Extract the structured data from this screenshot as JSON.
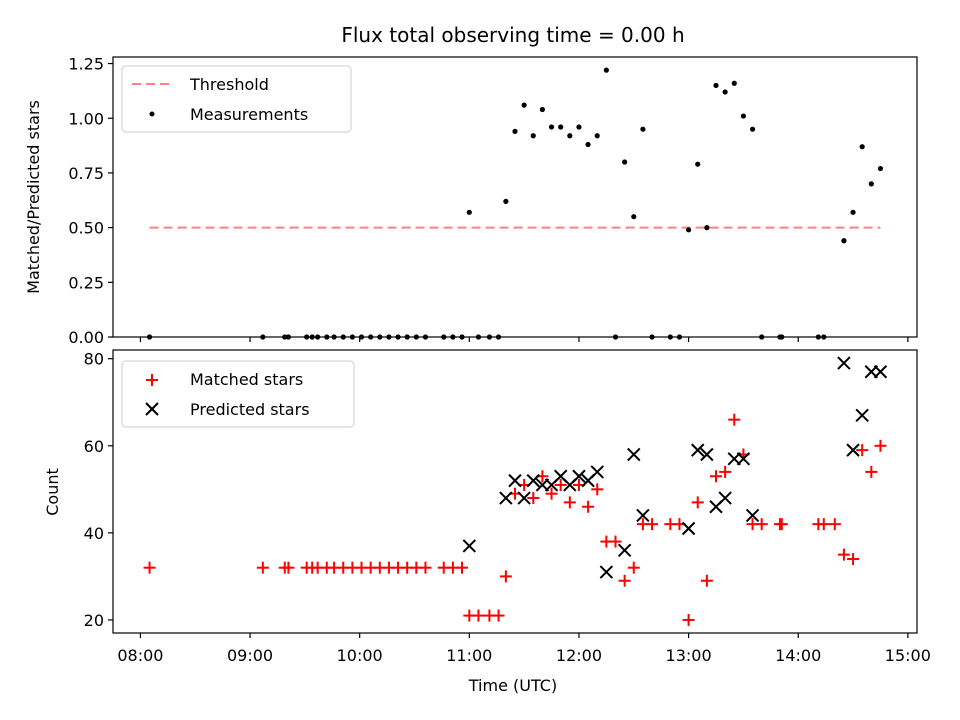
{
  "title": "Flux total observing time = 0.00 h",
  "chart_data": [
    {
      "type": "scatter",
      "ylabel": "Matched/Predicted stars",
      "xlabel": "",
      "xlim": [
        "07:45",
        "15:05"
      ],
      "ylim": [
        0,
        1.28
      ],
      "yticks": [
        0,
        0.25,
        0.5,
        0.75,
        1.0,
        1.25
      ],
      "ytick_labels": [
        "0.00",
        "0.25",
        "0.50",
        "0.75",
        "1.00",
        "1.25"
      ],
      "legend_position": "top-left",
      "threshold": {
        "name": "Threshold",
        "value": 0.5,
        "x_start": "08:05",
        "x_end": "14:45",
        "color": "#ff8080"
      },
      "series": [
        {
          "name": "Measurements",
          "marker": "dot",
          "color": "#000000",
          "points": [
            [
              "08:05",
              0
            ],
            [
              "09:07",
              0
            ],
            [
              "09:19",
              0
            ],
            [
              "09:21",
              0
            ],
            [
              "09:31",
              0
            ],
            [
              "09:34",
              0
            ],
            [
              "09:37",
              0
            ],
            [
              "09:42",
              0
            ],
            [
              "09:46",
              0
            ],
            [
              "09:51",
              0
            ],
            [
              "09:56",
              0
            ],
            [
              "10:01",
              0
            ],
            [
              "10:06",
              0
            ],
            [
              "10:11",
              0
            ],
            [
              "10:16",
              0
            ],
            [
              "10:21",
              0
            ],
            [
              "10:26",
              0
            ],
            [
              "10:31",
              0
            ],
            [
              "10:36",
              0
            ],
            [
              "10:46",
              0
            ],
            [
              "10:51",
              0
            ],
            [
              "10:56",
              0
            ],
            [
              "11:00",
              0.57
            ],
            [
              "11:05",
              0
            ],
            [
              "11:11",
              0
            ],
            [
              "11:16",
              0
            ],
            [
              "11:20",
              0.62
            ],
            [
              "11:25",
              0.94
            ],
            [
              "11:30",
              1.06
            ],
            [
              "11:35",
              0.92
            ],
            [
              "11:40",
              1.04
            ],
            [
              "11:45",
              0.96
            ],
            [
              "11:50",
              0.96
            ],
            [
              "11:55",
              0.92
            ],
            [
              "12:00",
              0.96
            ],
            [
              "12:05",
              0.88
            ],
            [
              "12:10",
              0.92
            ],
            [
              "12:15",
              1.22
            ],
            [
              "12:20",
              0
            ],
            [
              "12:25",
              0.8
            ],
            [
              "12:30",
              0.55
            ],
            [
              "12:35",
              0.95
            ],
            [
              "12:40",
              0
            ],
            [
              "12:50",
              0
            ],
            [
              "12:55",
              0
            ],
            [
              "13:00",
              0.49
            ],
            [
              "13:05",
              0.79
            ],
            [
              "13:10",
              0.5
            ],
            [
              "13:15",
              1.15
            ],
            [
              "13:20",
              1.12
            ],
            [
              "13:25",
              1.16
            ],
            [
              "13:30",
              1.01
            ],
            [
              "13:35",
              0.95
            ],
            [
              "13:40",
              0
            ],
            [
              "13:50",
              0
            ],
            [
              "13:51",
              0
            ],
            [
              "14:11",
              0
            ],
            [
              "14:14",
              0
            ],
            [
              "14:25",
              0.44
            ],
            [
              "14:30",
              0.57
            ],
            [
              "14:35",
              0.87
            ],
            [
              "14:40",
              0.7
            ],
            [
              "14:45",
              0.77
            ]
          ]
        }
      ]
    },
    {
      "type": "scatter",
      "xlabel": "Time (UTC)",
      "ylabel": "Count",
      "xlim": [
        "07:45",
        "15:05"
      ],
      "ylim": [
        17,
        82
      ],
      "xticks": [
        "08:00",
        "09:00",
        "10:00",
        "11:00",
        "12:00",
        "13:00",
        "14:00",
        "15:00"
      ],
      "yticks": [
        20,
        40,
        60,
        80
      ],
      "ytick_labels": [
        "20",
        "40",
        "60",
        "80"
      ],
      "legend_position": "top-left",
      "series": [
        {
          "name": "Matched stars",
          "marker": "plus",
          "color": "#ff0000",
          "points": [
            [
              "08:05",
              32
            ],
            [
              "09:07",
              32
            ],
            [
              "09:19",
              32
            ],
            [
              "09:21",
              32
            ],
            [
              "09:31",
              32
            ],
            [
              "09:34",
              32
            ],
            [
              "09:37",
              32
            ],
            [
              "09:42",
              32
            ],
            [
              "09:46",
              32
            ],
            [
              "09:51",
              32
            ],
            [
              "09:56",
              32
            ],
            [
              "10:01",
              32
            ],
            [
              "10:06",
              32
            ],
            [
              "10:11",
              32
            ],
            [
              "10:16",
              32
            ],
            [
              "10:21",
              32
            ],
            [
              "10:26",
              32
            ],
            [
              "10:31",
              32
            ],
            [
              "10:36",
              32
            ],
            [
              "10:46",
              32
            ],
            [
              "10:51",
              32
            ],
            [
              "10:56",
              32
            ],
            [
              "11:00",
              21
            ],
            [
              "11:05",
              21
            ],
            [
              "11:11",
              21
            ],
            [
              "11:16",
              21
            ],
            [
              "11:20",
              30
            ],
            [
              "11:25",
              49
            ],
            [
              "11:30",
              51
            ],
            [
              "11:35",
              48
            ],
            [
              "11:40",
              53
            ],
            [
              "11:45",
              49
            ],
            [
              "11:50",
              51
            ],
            [
              "11:55",
              47
            ],
            [
              "12:00",
              51
            ],
            [
              "12:05",
              46
            ],
            [
              "12:10",
              50
            ],
            [
              "12:15",
              38
            ],
            [
              "12:20",
              38
            ],
            [
              "12:25",
              29
            ],
            [
              "12:30",
              32
            ],
            [
              "12:35",
              42
            ],
            [
              "12:40",
              42
            ],
            [
              "12:50",
              42
            ],
            [
              "12:55",
              42
            ],
            [
              "13:00",
              20
            ],
            [
              "13:05",
              47
            ],
            [
              "13:10",
              29
            ],
            [
              "13:15",
              53
            ],
            [
              "13:20",
              54
            ],
            [
              "13:25",
              66
            ],
            [
              "13:30",
              58
            ],
            [
              "13:35",
              42
            ],
            [
              "13:40",
              42
            ],
            [
              "13:50",
              42
            ],
            [
              "13:51",
              42
            ],
            [
              "14:11",
              42
            ],
            [
              "14:14",
              42
            ],
            [
              "14:20",
              42
            ],
            [
              "14:25",
              35
            ],
            [
              "14:30",
              34
            ],
            [
              "14:35",
              59
            ],
            [
              "14:40",
              54
            ],
            [
              "14:45",
              60
            ]
          ]
        },
        {
          "name": "Predicted stars",
          "marker": "x",
          "color": "#000000",
          "points": [
            [
              "11:00",
              37
            ],
            [
              "11:20",
              48
            ],
            [
              "11:25",
              52
            ],
            [
              "11:30",
              48
            ],
            [
              "11:35",
              52
            ],
            [
              "11:40",
              51
            ],
            [
              "11:45",
              51
            ],
            [
              "11:50",
              53
            ],
            [
              "11:55",
              51
            ],
            [
              "12:00",
              53
            ],
            [
              "12:05",
              52
            ],
            [
              "12:10",
              54
            ],
            [
              "12:15",
              31
            ],
            [
              "12:25",
              36
            ],
            [
              "12:30",
              58
            ],
            [
              "12:35",
              44
            ],
            [
              "13:00",
              41
            ],
            [
              "13:05",
              59
            ],
            [
              "13:10",
              58
            ],
            [
              "13:15",
              46
            ],
            [
              "13:20",
              48
            ],
            [
              "13:25",
              57
            ],
            [
              "13:30",
              57
            ],
            [
              "13:35",
              44
            ],
            [
              "14:25",
              79
            ],
            [
              "14:30",
              59
            ],
            [
              "14:35",
              67
            ],
            [
              "14:40",
              77
            ],
            [
              "14:45",
              77
            ]
          ]
        }
      ]
    }
  ]
}
